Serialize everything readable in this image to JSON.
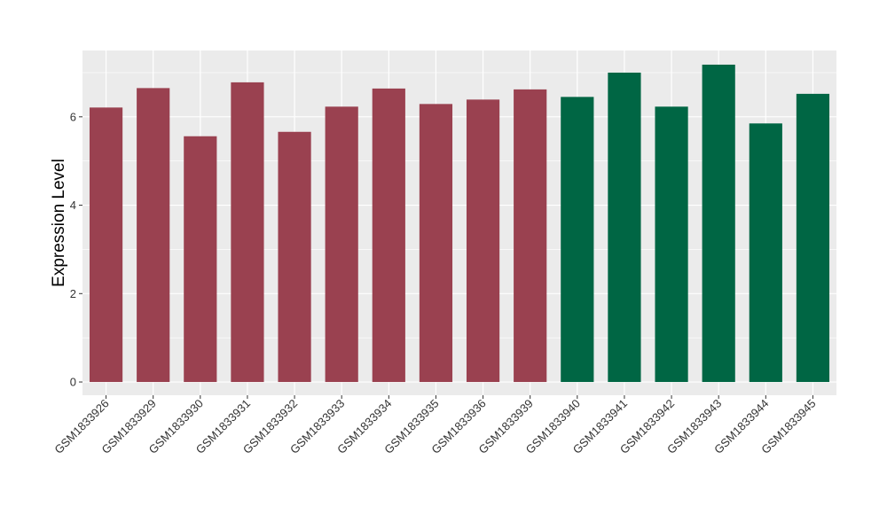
{
  "chart_data": {
    "type": "bar",
    "title": "",
    "xlabel": "",
    "ylabel": "Expression Level",
    "ylim": [
      -0.3,
      7.5
    ],
    "yticks": [
      0,
      2,
      4,
      6
    ],
    "grid": true,
    "legend": "none",
    "categories": [
      "GSM1833926",
      "GSM1833929",
      "GSM1833930",
      "GSM1833931",
      "GSM1833932",
      "GSM1833933",
      "GSM1833934",
      "GSM1833935",
      "GSM1833936",
      "GSM1833939",
      "GSM1833940",
      "GSM1833941",
      "GSM1833942",
      "GSM1833943",
      "GSM1833944",
      "GSM1833945"
    ],
    "values": [
      6.21,
      6.65,
      5.56,
      6.78,
      5.66,
      6.23,
      6.64,
      6.29,
      6.39,
      6.62,
      6.45,
      7.0,
      6.23,
      7.18,
      5.85,
      6.52
    ],
    "group": [
      "a",
      "a",
      "a",
      "a",
      "a",
      "a",
      "a",
      "a",
      "a",
      "a",
      "b",
      "b",
      "b",
      "b",
      "b",
      "b"
    ],
    "colors": {
      "a": "#9a4150",
      "b": "#006644"
    },
    "panel_background": "#ebebeb",
    "grid_color": "#ffffff"
  }
}
